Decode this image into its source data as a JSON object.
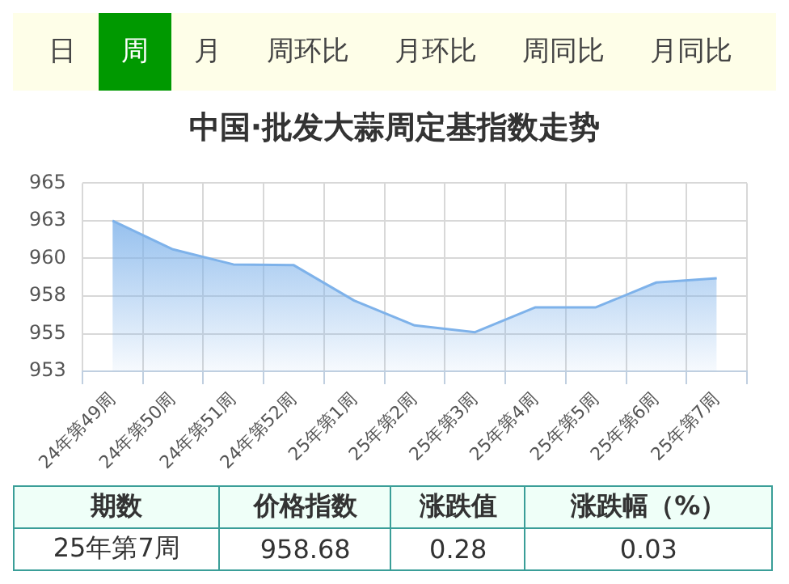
{
  "chart_data": {
    "type": "area",
    "title": "中国·批发大蒜周定基指数走势",
    "categories": [
      "24年第49周",
      "24年第50周",
      "24年第51周",
      "24年第52周",
      "25年第1周",
      "25年第2周",
      "25年第3周",
      "25年第4周",
      "25年第5周",
      "25年第6周",
      "25年第7周"
    ],
    "values": [
      962.5,
      960.6,
      959.6,
      959.55,
      957.2,
      955.55,
      955.1,
      956.75,
      956.75,
      958.4,
      958.68
    ],
    "color": "#7eb2ea",
    "ylim": [
      952.5,
      965
    ],
    "yticks": [
      {
        "value": 952.5,
        "label": "953"
      },
      955,
      {
        "value": 957.5,
        "label": "958"
      },
      960,
      {
        "value": 962.5,
        "label": "963"
      },
      965
    ],
    "grid": true,
    "annotations": [
      "日",
      "周",
      "月",
      "周环比",
      "月环比",
      "周同比",
      "月同比",
      "期数",
      "价格指数",
      "涨跌值",
      "涨跌幅（%）",
      "25年第7周",
      "958.68",
      "0.28",
      "0.03"
    ]
  }
}
